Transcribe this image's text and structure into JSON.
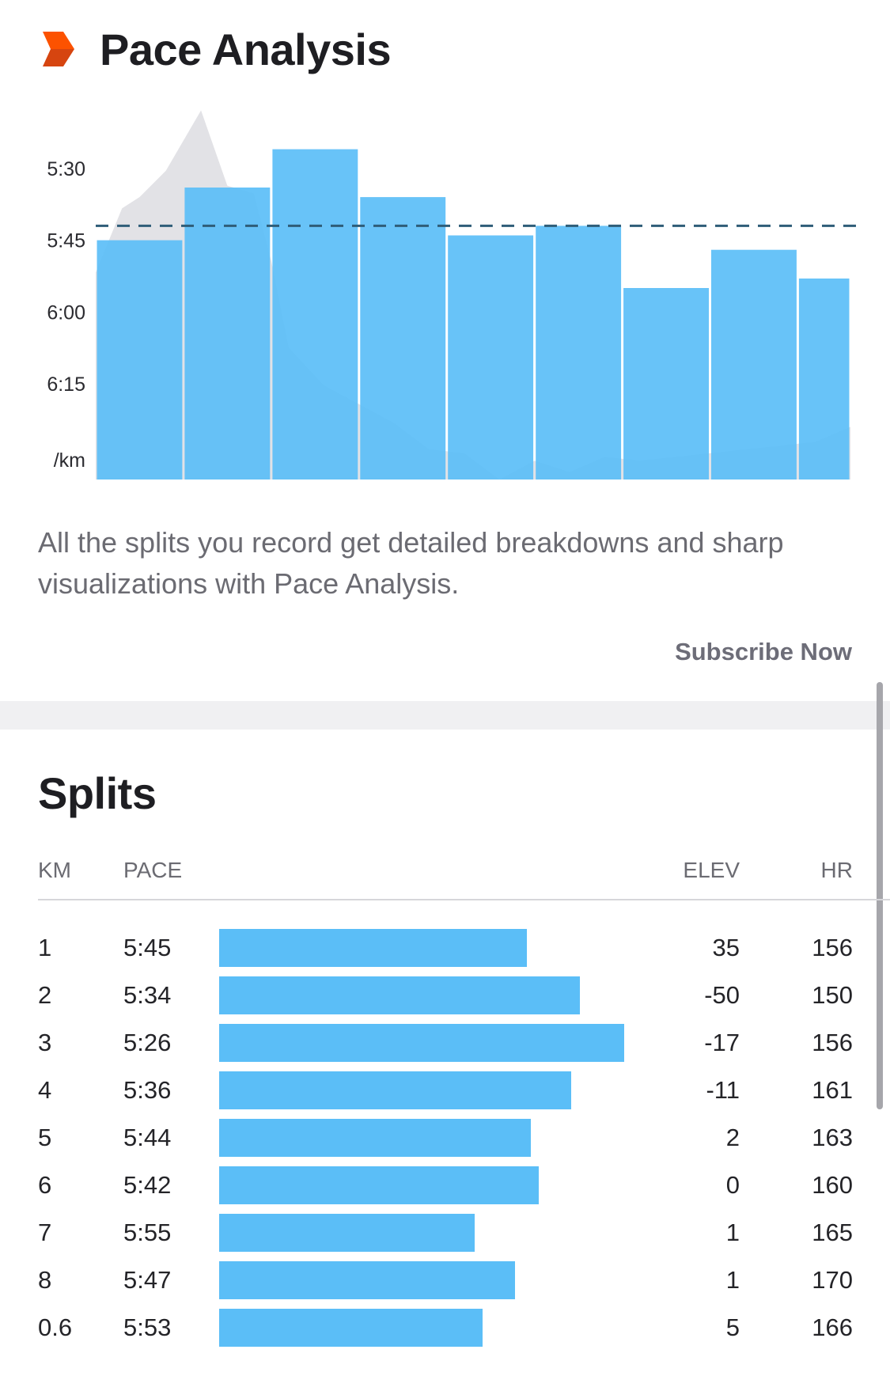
{
  "pace_section": {
    "title": "Pace Analysis",
    "icon": "orange-chevron-icon",
    "description": "All the splits you record get detailed breakdowns and sharp visualizations with Pace Analysis.",
    "subscribe_label": "Subscribe Now"
  },
  "chart_data": {
    "type": "bar",
    "y_ticks": [
      "5:30",
      "5:45",
      "6:00",
      "6:15"
    ],
    "y_unit_label": "/km",
    "y_scale": "pace (min/km), inverted: faster pace plotted higher",
    "ylim_pace": [
      "6:35",
      "5:13"
    ],
    "bars": [
      {
        "km": 1,
        "width_km": 1.0,
        "pace": "5:45"
      },
      {
        "km": 2,
        "width_km": 1.0,
        "pace": "5:34"
      },
      {
        "km": 3,
        "width_km": 1.0,
        "pace": "5:26"
      },
      {
        "km": 4,
        "width_km": 1.0,
        "pace": "5:36"
      },
      {
        "km": 5,
        "width_km": 1.0,
        "pace": "5:44"
      },
      {
        "km": 6,
        "width_km": 1.0,
        "pace": "5:42"
      },
      {
        "km": 7,
        "width_km": 1.0,
        "pace": "5:55"
      },
      {
        "km": 8,
        "width_km": 1.0,
        "pace": "5:47"
      },
      {
        "km": 0.6,
        "width_km": 0.6,
        "pace": "5:53"
      }
    ],
    "average_pace_line": "5:42",
    "elevation_profile": {
      "style": "grey filled background area",
      "x_km": [
        0,
        0.3,
        0.5,
        0.8,
        1.2,
        1.5,
        1.8,
        2.0,
        2.2,
        2.4,
        2.6,
        3.0,
        3.4,
        3.8,
        4.2,
        4.6,
        5.0,
        5.4,
        5.8,
        6.2,
        6.6,
        7.0,
        7.4,
        7.8,
        8.2,
        8.6
      ],
      "elevation_relative": [
        0.55,
        0.72,
        0.75,
        0.82,
        0.98,
        0.78,
        0.76,
        0.58,
        0.35,
        0.3,
        0.25,
        0.2,
        0.15,
        0.08,
        0.07,
        0.0,
        0.05,
        0.02,
        0.06,
        0.05,
        0.06,
        0.07,
        0.08,
        0.09,
        0.1,
        0.14
      ]
    }
  },
  "splits": {
    "title": "Splits",
    "columns": {
      "km": "KM",
      "pace": "PACE",
      "elev": "ELEV",
      "hr": "HR"
    },
    "rows": [
      {
        "km": "1",
        "pace": "5:45",
        "elev": "35",
        "hr": "156",
        "bar_fraction": 0.76
      },
      {
        "km": "2",
        "pace": "5:34",
        "elev": "-50",
        "hr": "150",
        "bar_fraction": 0.89
      },
      {
        "km": "3",
        "pace": "5:26",
        "elev": "-17",
        "hr": "156",
        "bar_fraction": 1.0
      },
      {
        "km": "4",
        "pace": "5:36",
        "elev": "-11",
        "hr": "161",
        "bar_fraction": 0.87
      },
      {
        "km": "5",
        "pace": "5:44",
        "elev": "2",
        "hr": "163",
        "bar_fraction": 0.77
      },
      {
        "km": "6",
        "pace": "5:42",
        "elev": "0",
        "hr": "160",
        "bar_fraction": 0.79
      },
      {
        "km": "7",
        "pace": "5:55",
        "elev": "1",
        "hr": "165",
        "bar_fraction": 0.63
      },
      {
        "km": "8",
        "pace": "5:47",
        "elev": "1",
        "hr": "170",
        "bar_fraction": 0.73
      },
      {
        "km": "0.6",
        "pace": "5:53",
        "elev": "5",
        "hr": "166",
        "bar_fraction": 0.65
      }
    ]
  },
  "colors": {
    "bar_blue": "#5bbef7",
    "elevation_grey": "#e2e2e6",
    "avg_line": "#2f5d78",
    "brand_orange": "#fc5200",
    "brand_orange_dark": "#d64510",
    "text_dark": "#242428",
    "text_muted": "#6b6b72"
  }
}
